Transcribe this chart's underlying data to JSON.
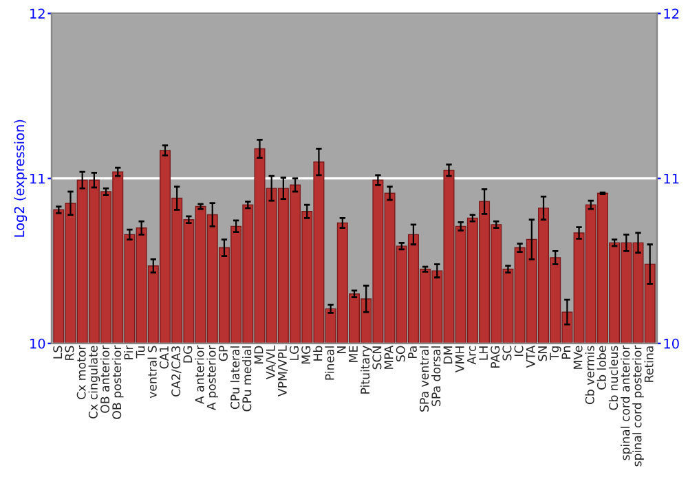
{
  "chart_data": {
    "type": "bar",
    "ylabel": "Log2 (expression)",
    "categories": [
      "LS",
      "RS",
      "Cx motor",
      "Cx cingulate",
      "OB anterior",
      "OB posterior",
      "Pir",
      "Tu",
      "ventral S",
      "CA1",
      "CA2/CA3",
      "DG",
      "A anterior",
      "A posterior",
      "GP",
      "CPu lateral",
      "CPu medial",
      "MD",
      "VA/VL",
      "VPM/VPL",
      "LG",
      "MG",
      "Hb",
      "Pineal",
      "N",
      "ME",
      "Pituitary",
      "SCN",
      "MPA",
      "SO",
      "Pa",
      "SPa ventral",
      "SPa dorsal",
      "DM",
      "VMH",
      "Arc",
      "LH",
      "PAG",
      "SC",
      "IC",
      "VTA",
      "SN",
      "Tg",
      "Pn",
      "MVe",
      "Cb vermis",
      "Cb lobe",
      "Cb nucleus",
      "spinal cord anterior",
      "spinal cord posterior",
      "Retina"
    ],
    "values": [
      10.81,
      10.85,
      10.99,
      10.99,
      10.92,
      11.04,
      10.66,
      10.7,
      10.47,
      11.17,
      10.88,
      10.75,
      10.83,
      10.78,
      10.58,
      10.71,
      10.84,
      11.18,
      10.94,
      10.94,
      10.96,
      10.8,
      11.1,
      10.21,
      10.73,
      10.3,
      10.27,
      10.99,
      10.91,
      10.59,
      10.66,
      10.45,
      10.44,
      11.05,
      10.71,
      10.76,
      10.86,
      10.72,
      10.45,
      10.58,
      10.63,
      10.82,
      10.52,
      10.19,
      10.67,
      10.84,
      10.91,
      10.61,
      10.61,
      10.61,
      10.48
    ],
    "errors": [
      0.02,
      0.07,
      0.05,
      0.045,
      0.02,
      0.025,
      0.03,
      0.04,
      0.04,
      0.03,
      0.07,
      0.02,
      0.015,
      0.07,
      0.05,
      0.035,
      0.02,
      0.055,
      0.075,
      0.065,
      0.04,
      0.04,
      0.08,
      0.025,
      0.03,
      0.02,
      0.08,
      0.03,
      0.04,
      0.02,
      0.06,
      0.015,
      0.04,
      0.035,
      0.025,
      0.02,
      0.075,
      0.02,
      0.02,
      0.025,
      0.12,
      0.07,
      0.04,
      0.075,
      0.035,
      0.025,
      0.005,
      0.02,
      0.05,
      0.06,
      0.12
    ],
    "color": "#b83232",
    "ylim": [
      10,
      12
    ],
    "yticks": [
      10,
      11,
      12
    ],
    "y2lim": [
      10,
      12
    ],
    "y2ticks": [
      10,
      11,
      12
    ],
    "grid": "y",
    "legend": false
  }
}
